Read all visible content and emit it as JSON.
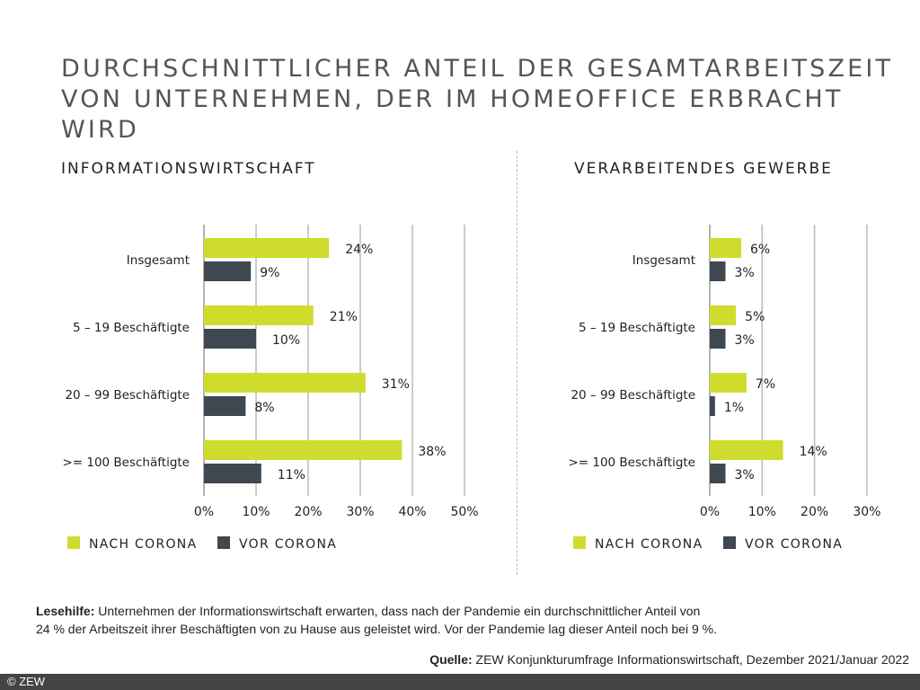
{
  "title_lines": [
    "DURCHSCHNITTLICHER ANTEIL DER GESAMTARBEITSZEIT",
    "VON UNTERNEHMEN, DER IM HOMEOFFICE ERBRACHT WIRD"
  ],
  "colors": {
    "nach": "#cfdc2d",
    "vor": "#3f4750",
    "grid": "#bbbbbb"
  },
  "chart_data": [
    {
      "type": "bar",
      "orientation": "horizontal",
      "title": "INFORMATIONSWIRTSCHAFT",
      "categories": [
        "Insgesamt",
        "5 – 19 Beschäftigte",
        "20 – 99 Beschäftigte",
        ">= 100 Beschäftigte"
      ],
      "series": [
        {
          "name": "NACH CORONA",
          "values": [
            24,
            21,
            31,
            38
          ]
        },
        {
          "name": "VOR CORONA",
          "values": [
            9,
            10,
            8,
            11
          ]
        }
      ],
      "xlim": [
        0,
        50
      ],
      "ticks": [
        "0%",
        "10%",
        "20%",
        "30%",
        "40%",
        "50%"
      ],
      "grid": true,
      "legend": "bottom"
    },
    {
      "type": "bar",
      "orientation": "horizontal",
      "title": "VERARBEITENDES GEWERBE",
      "categories": [
        "Insgesamt",
        "5 – 19 Beschäftigte",
        "20 – 99 Beschäftigte",
        ">= 100 Beschäftigte"
      ],
      "series": [
        {
          "name": "NACH CORONA",
          "values": [
            6,
            5,
            7,
            14
          ]
        },
        {
          "name": "VOR CORONA",
          "values": [
            3,
            3,
            1,
            3
          ]
        }
      ],
      "xlim": [
        0,
        30
      ],
      "ticks": [
        "0%",
        "10%",
        "20%",
        "30%"
      ],
      "grid": true,
      "legend": "bottom"
    }
  ],
  "note": {
    "label": "Lesehilfe:",
    "line1": " Unternehmen der Informationswirtschaft erwarten, dass nach der Pandemie ein durchschnittlicher Anteil von",
    "line2": "24 % der Arbeitszeit ihrer Beschäftigten von zu Hause aus geleistet wird. Vor der Pandemie lag dieser Anteil noch bei 9 %."
  },
  "source": {
    "label": "Quelle:",
    "text": " ZEW Konjunkturumfrage Informationswirtschaft, Dezember 2021/Januar 2022"
  },
  "footer": "© ZEW"
}
